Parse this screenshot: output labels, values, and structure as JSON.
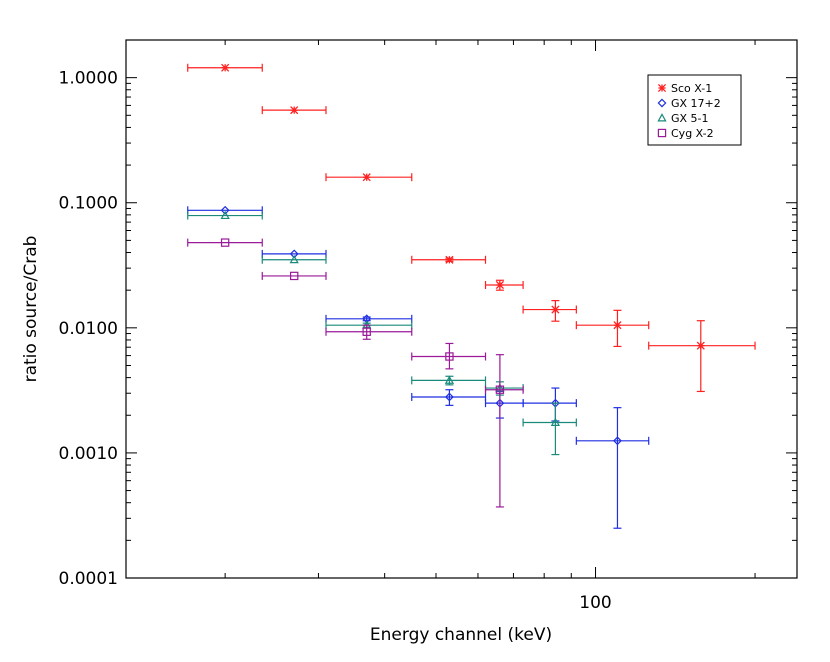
{
  "chart_data": {
    "type": "scatter",
    "title": "",
    "xlabel": "Energy channel (keV)",
    "ylabel": "ratio source/Crab",
    "xscale": "log",
    "yscale": "log",
    "xlim": [
      13,
      240
    ],
    "ylim": [
      0.0001,
      2.0
    ],
    "x_tick_labels": [
      {
        "value": 100,
        "label": "100"
      }
    ],
    "y_tick_labels": [
      {
        "value": 1.0,
        "label": "1.0000"
      },
      {
        "value": 0.1,
        "label": "0.1000"
      },
      {
        "value": 0.01,
        "label": "0.0100"
      },
      {
        "value": 0.001,
        "label": "0.0010"
      },
      {
        "value": 0.0001,
        "label": "0.0001"
      }
    ],
    "grid": false,
    "legend_position": "top-right",
    "series": [
      {
        "name": "Sco X-1",
        "color": "#ff2020",
        "marker": "asterisk",
        "points": [
          {
            "x": 20.0,
            "xlo": 17.0,
            "xhi": 23.5,
            "y": 1.2,
            "ylo": 1.2,
            "yhi": 1.2
          },
          {
            "x": 27.0,
            "xlo": 23.5,
            "xhi": 31.0,
            "y": 0.55,
            "ylo": 0.55,
            "yhi": 0.55
          },
          {
            "x": 37.0,
            "xlo": 31.0,
            "xhi": 45.0,
            "y": 0.16,
            "ylo": 0.16,
            "yhi": 0.16
          },
          {
            "x": 53.0,
            "xlo": 45.0,
            "xhi": 62.0,
            "y": 0.035,
            "ylo": 0.034,
            "yhi": 0.036
          },
          {
            "x": 66.0,
            "xlo": 62.0,
            "xhi": 73.0,
            "y": 0.022,
            "ylo": 0.02,
            "yhi": 0.024
          },
          {
            "x": 84.0,
            "xlo": 73.0,
            "xhi": 92.0,
            "y": 0.014,
            "ylo": 0.0113,
            "yhi": 0.0165
          },
          {
            "x": 110.0,
            "xlo": 92.0,
            "xhi": 126.0,
            "y": 0.0105,
            "ylo": 0.0071,
            "yhi": 0.0138
          },
          {
            "x": 158.0,
            "xlo": 126.0,
            "xhi": 200.0,
            "y": 0.0072,
            "ylo": 0.0031,
            "yhi": 0.0114
          }
        ]
      },
      {
        "name": "GX 17+2",
        "color": "#1f2fe0",
        "marker": "diamond",
        "points": [
          {
            "x": 20.0,
            "xlo": 17.0,
            "xhi": 23.5,
            "y": 0.087,
            "ylo": 0.087,
            "yhi": 0.087
          },
          {
            "x": 27.0,
            "xlo": 23.5,
            "xhi": 31.0,
            "y": 0.039,
            "ylo": 0.039,
            "yhi": 0.039
          },
          {
            "x": 37.0,
            "xlo": 31.0,
            "xhi": 45.0,
            "y": 0.0118,
            "ylo": 0.0114,
            "yhi": 0.0122
          },
          {
            "x": 53.0,
            "xlo": 45.0,
            "xhi": 62.0,
            "y": 0.0028,
            "ylo": 0.0024,
            "yhi": 0.0032
          },
          {
            "x": 66.0,
            "xlo": 62.0,
            "xhi": 73.0,
            "y": 0.0025,
            "ylo": 0.0019,
            "yhi": 0.0031
          },
          {
            "x": 84.0,
            "xlo": 73.0,
            "xhi": 92.0,
            "y": 0.0025,
            "ylo": 0.0018,
            "yhi": 0.0033
          },
          {
            "x": 110.0,
            "xlo": 92.0,
            "xhi": 126.0,
            "y": 0.00125,
            "ylo": 0.00025,
            "yhi": 0.0023
          }
        ]
      },
      {
        "name": "GX 5-1",
        "color": "#1a8a7a",
        "marker": "triangle",
        "points": [
          {
            "x": 20.0,
            "xlo": 17.0,
            "xhi": 23.5,
            "y": 0.079,
            "ylo": 0.079,
            "yhi": 0.079
          },
          {
            "x": 27.0,
            "xlo": 23.5,
            "xhi": 31.0,
            "y": 0.035,
            "ylo": 0.035,
            "yhi": 0.035
          },
          {
            "x": 37.0,
            "xlo": 31.0,
            "xhi": 45.0,
            "y": 0.0105,
            "ylo": 0.0101,
            "yhi": 0.0109
          },
          {
            "x": 53.0,
            "xlo": 45.0,
            "xhi": 62.0,
            "y": 0.0038,
            "ylo": 0.0035,
            "yhi": 0.0041
          },
          {
            "x": 66.0,
            "xlo": 62.0,
            "xhi": 73.0,
            "y": 0.0033,
            "ylo": 0.0029,
            "yhi": 0.0037
          },
          {
            "x": 84.0,
            "xlo": 73.0,
            "xhi": 92.0,
            "y": 0.00175,
            "ylo": 0.00097,
            "yhi": 0.0025
          }
        ]
      },
      {
        "name": "Cyg X-2",
        "color": "#9a1a9a",
        "marker": "square",
        "points": [
          {
            "x": 20.0,
            "xlo": 17.0,
            "xhi": 23.5,
            "y": 0.048,
            "ylo": 0.048,
            "yhi": 0.048
          },
          {
            "x": 27.0,
            "xlo": 23.5,
            "xhi": 31.0,
            "y": 0.026,
            "ylo": 0.026,
            "yhi": 0.026
          },
          {
            "x": 37.0,
            "xlo": 31.0,
            "xhi": 45.0,
            "y": 0.0093,
            "ylo": 0.0081,
            "yhi": 0.0105
          },
          {
            "x": 53.0,
            "xlo": 45.0,
            "xhi": 62.0,
            "y": 0.0059,
            "ylo": 0.0047,
            "yhi": 0.0075
          },
          {
            "x": 66.0,
            "xlo": 62.0,
            "xhi": 73.0,
            "y": 0.0032,
            "ylo": 0.00037,
            "yhi": 0.0061
          }
        ]
      }
    ]
  }
}
